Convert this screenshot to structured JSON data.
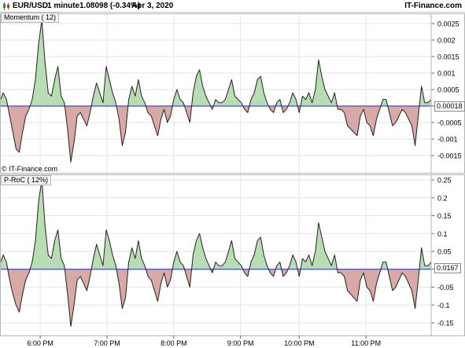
{
  "header": {
    "symbol": "EUR/USD",
    "timeframe": "1 minute",
    "price": "1.08098 (-0.34%)",
    "date": "Apr 3, 2020",
    "brand": "IT-Finance.com"
  },
  "watermark": "© IT-Finance.com",
  "colors": {
    "positive_fill": "#b9ddb3",
    "negative_fill": "#d9a9a6",
    "line": "#222222",
    "zero_line": "#3b4fc4",
    "grid": "#e6e6e6",
    "pane_border": "#b4b4b4"
  },
  "chart_data": [
    {
      "type": "area",
      "title": "Momentum ( 12)",
      "current_value_label": "0.00018",
      "y_ticks": [
        "0.0025",
        "0.002",
        "0.0015",
        "0.001",
        "0.0005",
        "0",
        "-0.0005",
        "-0.001",
        "-0.0015"
      ],
      "y_tick_values": [
        0.0025,
        0.002,
        0.0015,
        0.001,
        0.0005,
        0,
        -0.0005,
        -0.001,
        -0.0015
      ],
      "ylim": [
        -0.0018,
        0.0027
      ],
      "grid": true,
      "series": [
        {
          "x": [
            0,
            4,
            8,
            12,
            16,
            20,
            24,
            28,
            32,
            36,
            40,
            44,
            48,
            52,
            56,
            60,
            64,
            68,
            72,
            76,
            80,
            84,
            88,
            92,
            96,
            100,
            104,
            108,
            112,
            116,
            120,
            124,
            128,
            132,
            136,
            140,
            144,
            148,
            152,
            156,
            160,
            164,
            168,
            172,
            176,
            180,
            184,
            188,
            192,
            196,
            200,
            204,
            208,
            212,
            216,
            220,
            224,
            228,
            232,
            236,
            240,
            244,
            248,
            252,
            256,
            260,
            264,
            268,
            272,
            276,
            280,
            284,
            288,
            292,
            296,
            300,
            304,
            308,
            312,
            316,
            320,
            324,
            328,
            332,
            336,
            340,
            344,
            348,
            352,
            356,
            360,
            364,
            368,
            372,
            376,
            380,
            384,
            388,
            392,
            396,
            400,
            404,
            408,
            412,
            416,
            420,
            424,
            428,
            432,
            436,
            440,
            444,
            448,
            452,
            456,
            460,
            464,
            468,
            472,
            476,
            480,
            484,
            488,
            492,
            496,
            500,
            504,
            508,
            512,
            516,
            520,
            524,
            528,
            532,
            536
          ],
          "values": [
            0.00015,
            0.0004,
            0.0002,
            -0.0003,
            -0.0008,
            -0.0013,
            -0.0014,
            -0.0008,
            -0.0003,
            -0.0001,
            0.0002,
            0.0008,
            0.0019,
            0.0026,
            0.0013,
            0.0004,
            0.0003,
            0.0008,
            0.0012,
            0.0003,
            0.0001,
            -0.0007,
            -0.0017,
            -0.0011,
            -0.0003,
            -0.0002,
            -0.0004,
            -0.0006,
            -0.0002,
            0.0003,
            0.0007,
            0.0004,
            0.0001,
            0.0012,
            0.0008,
            0.0004,
            0.0001,
            -0.0004,
            -0.0012,
            -0.0008,
            0.0002,
            0.0006,
            0.0003,
            0.0008,
            0.0003,
            0.0001,
            -0.0002,
            -0.0003,
            -0.0006,
            -0.0009,
            -0.0004,
            -0.0001,
            -0.0005,
            -0.0003,
            0.0002,
            0.0005,
            0.0002,
            0.0001,
            -0.0002,
            -0.0005,
            0.0004,
            0.0009,
            0.0011,
            0.0006,
            0.0003,
            0.0001,
            -0.0001,
            0.0002,
            0.0001,
            0.0001,
            0.0002,
            0.0005,
            0.0008,
            0.0003,
            0.0002,
            0.0001,
            -0.0001,
            -0.0002,
            0.0002,
            0.0004,
            0.0008,
            0.0009,
            0.0004,
            0.0001,
            -0.0001,
            -0.0002,
            0.0001,
            0.0002,
            -0.0002,
            -0.0001,
            0.0001,
            0.0004,
            0.0002,
            -0.0002,
            0.0003,
            0.0002,
            0.0004,
            0.0001,
            0.0005,
            0.0014,
            0.0009,
            0.0005,
            0.0003,
            0.0001,
            0.0004,
            -0.0001,
            -0.0001,
            -0.0002,
            -0.0006,
            -0.0007,
            -0.0008,
            -0.0009,
            -0.0003,
            -0.0001,
            -0.0005,
            -0.0006,
            -0.0009,
            -0.0004,
            -0.0001,
            0.0002,
            0.0002,
            -0.0002,
            -0.0006,
            -0.0005,
            -0.0003,
            -0.0001,
            -0.0002,
            -0.0004,
            -0.0006,
            -0.0012,
            -0.0003,
            0.0006,
            0.0001,
            0.0001,
            0.0002
          ]
        }
      ]
    },
    {
      "type": "area",
      "title": "P-RoC ( 12%)",
      "current_value_label": "0.0167",
      "y_ticks": [
        "0.25",
        "0.2",
        "0.15",
        "0.1",
        "0.05",
        "0",
        "-0.05",
        "-0.1",
        "-0.15"
      ],
      "y_tick_values": [
        0.25,
        0.2,
        0.15,
        0.1,
        0.05,
        0,
        -0.05,
        -0.1,
        -0.15
      ],
      "ylim": [
        -0.17,
        0.255
      ],
      "grid": true,
      "series": [
        {
          "x": [
            0,
            4,
            8,
            12,
            16,
            20,
            24,
            28,
            32,
            36,
            40,
            44,
            48,
            52,
            56,
            60,
            64,
            68,
            72,
            76,
            80,
            84,
            88,
            92,
            96,
            100,
            104,
            108,
            112,
            116,
            120,
            124,
            128,
            132,
            136,
            140,
            144,
            148,
            152,
            156,
            160,
            164,
            168,
            172,
            176,
            180,
            184,
            188,
            192,
            196,
            200,
            204,
            208,
            212,
            216,
            220,
            224,
            228,
            232,
            236,
            240,
            244,
            248,
            252,
            256,
            260,
            264,
            268,
            272,
            276,
            280,
            284,
            288,
            292,
            296,
            300,
            304,
            308,
            312,
            316,
            320,
            324,
            328,
            332,
            336,
            340,
            344,
            348,
            352,
            356,
            360,
            364,
            368,
            372,
            376,
            380,
            384,
            388,
            392,
            396,
            400,
            404,
            408,
            412,
            416,
            420,
            424,
            428,
            432,
            436,
            440,
            444,
            448,
            452,
            456,
            460,
            464,
            468,
            472,
            476,
            480,
            484,
            488,
            492,
            496,
            500,
            504,
            508,
            512,
            516,
            520,
            524,
            528,
            532,
            536
          ],
          "values": [
            0.015,
            0.04,
            0.02,
            -0.03,
            -0.07,
            -0.1,
            -0.12,
            -0.07,
            -0.03,
            -0.01,
            0.02,
            0.08,
            0.19,
            0.25,
            0.12,
            0.04,
            0.03,
            0.08,
            0.11,
            0.03,
            0.01,
            -0.07,
            -0.16,
            -0.1,
            -0.03,
            -0.02,
            -0.04,
            -0.06,
            -0.02,
            0.03,
            0.07,
            0.04,
            0.01,
            0.11,
            0.08,
            0.04,
            0.01,
            -0.04,
            -0.11,
            -0.08,
            0.02,
            0.06,
            0.03,
            0.08,
            0.03,
            0.01,
            -0.02,
            -0.03,
            -0.06,
            -0.09,
            -0.04,
            -0.01,
            -0.05,
            -0.03,
            0.02,
            0.05,
            0.02,
            0.01,
            -0.02,
            -0.05,
            0.04,
            0.08,
            0.1,
            0.06,
            0.03,
            0.01,
            -0.01,
            0.02,
            0.01,
            0.01,
            0.02,
            0.05,
            0.08,
            0.03,
            0.02,
            0.01,
            -0.01,
            -0.02,
            0.02,
            0.04,
            0.08,
            0.09,
            0.04,
            0.01,
            -0.01,
            -0.02,
            0.01,
            0.02,
            -0.02,
            -0.01,
            0.01,
            0.04,
            0.02,
            -0.02,
            0.03,
            0.02,
            0.04,
            0.01,
            0.05,
            0.13,
            0.09,
            0.05,
            0.03,
            0.01,
            0.04,
            -0.01,
            -0.01,
            -0.02,
            -0.06,
            -0.07,
            -0.08,
            -0.09,
            -0.03,
            -0.01,
            -0.05,
            -0.06,
            -0.09,
            -0.04,
            -0.01,
            0.02,
            0.02,
            -0.02,
            -0.06,
            -0.05,
            -0.03,
            -0.01,
            -0.02,
            -0.04,
            -0.06,
            -0.11,
            -0.03,
            0.06,
            0.01,
            0.01,
            0.02
          ]
        }
      ]
    }
  ],
  "x_axis": {
    "ticks": [
      "6:00 PM",
      "7:00 PM",
      "8:00 PM",
      "9:00 PM",
      "10:00 PM",
      "11:00 PM"
    ],
    "tick_positions": [
      50,
      133,
      216,
      299,
      372,
      455
    ],
    "xlim": [
      0,
      536
    ]
  }
}
